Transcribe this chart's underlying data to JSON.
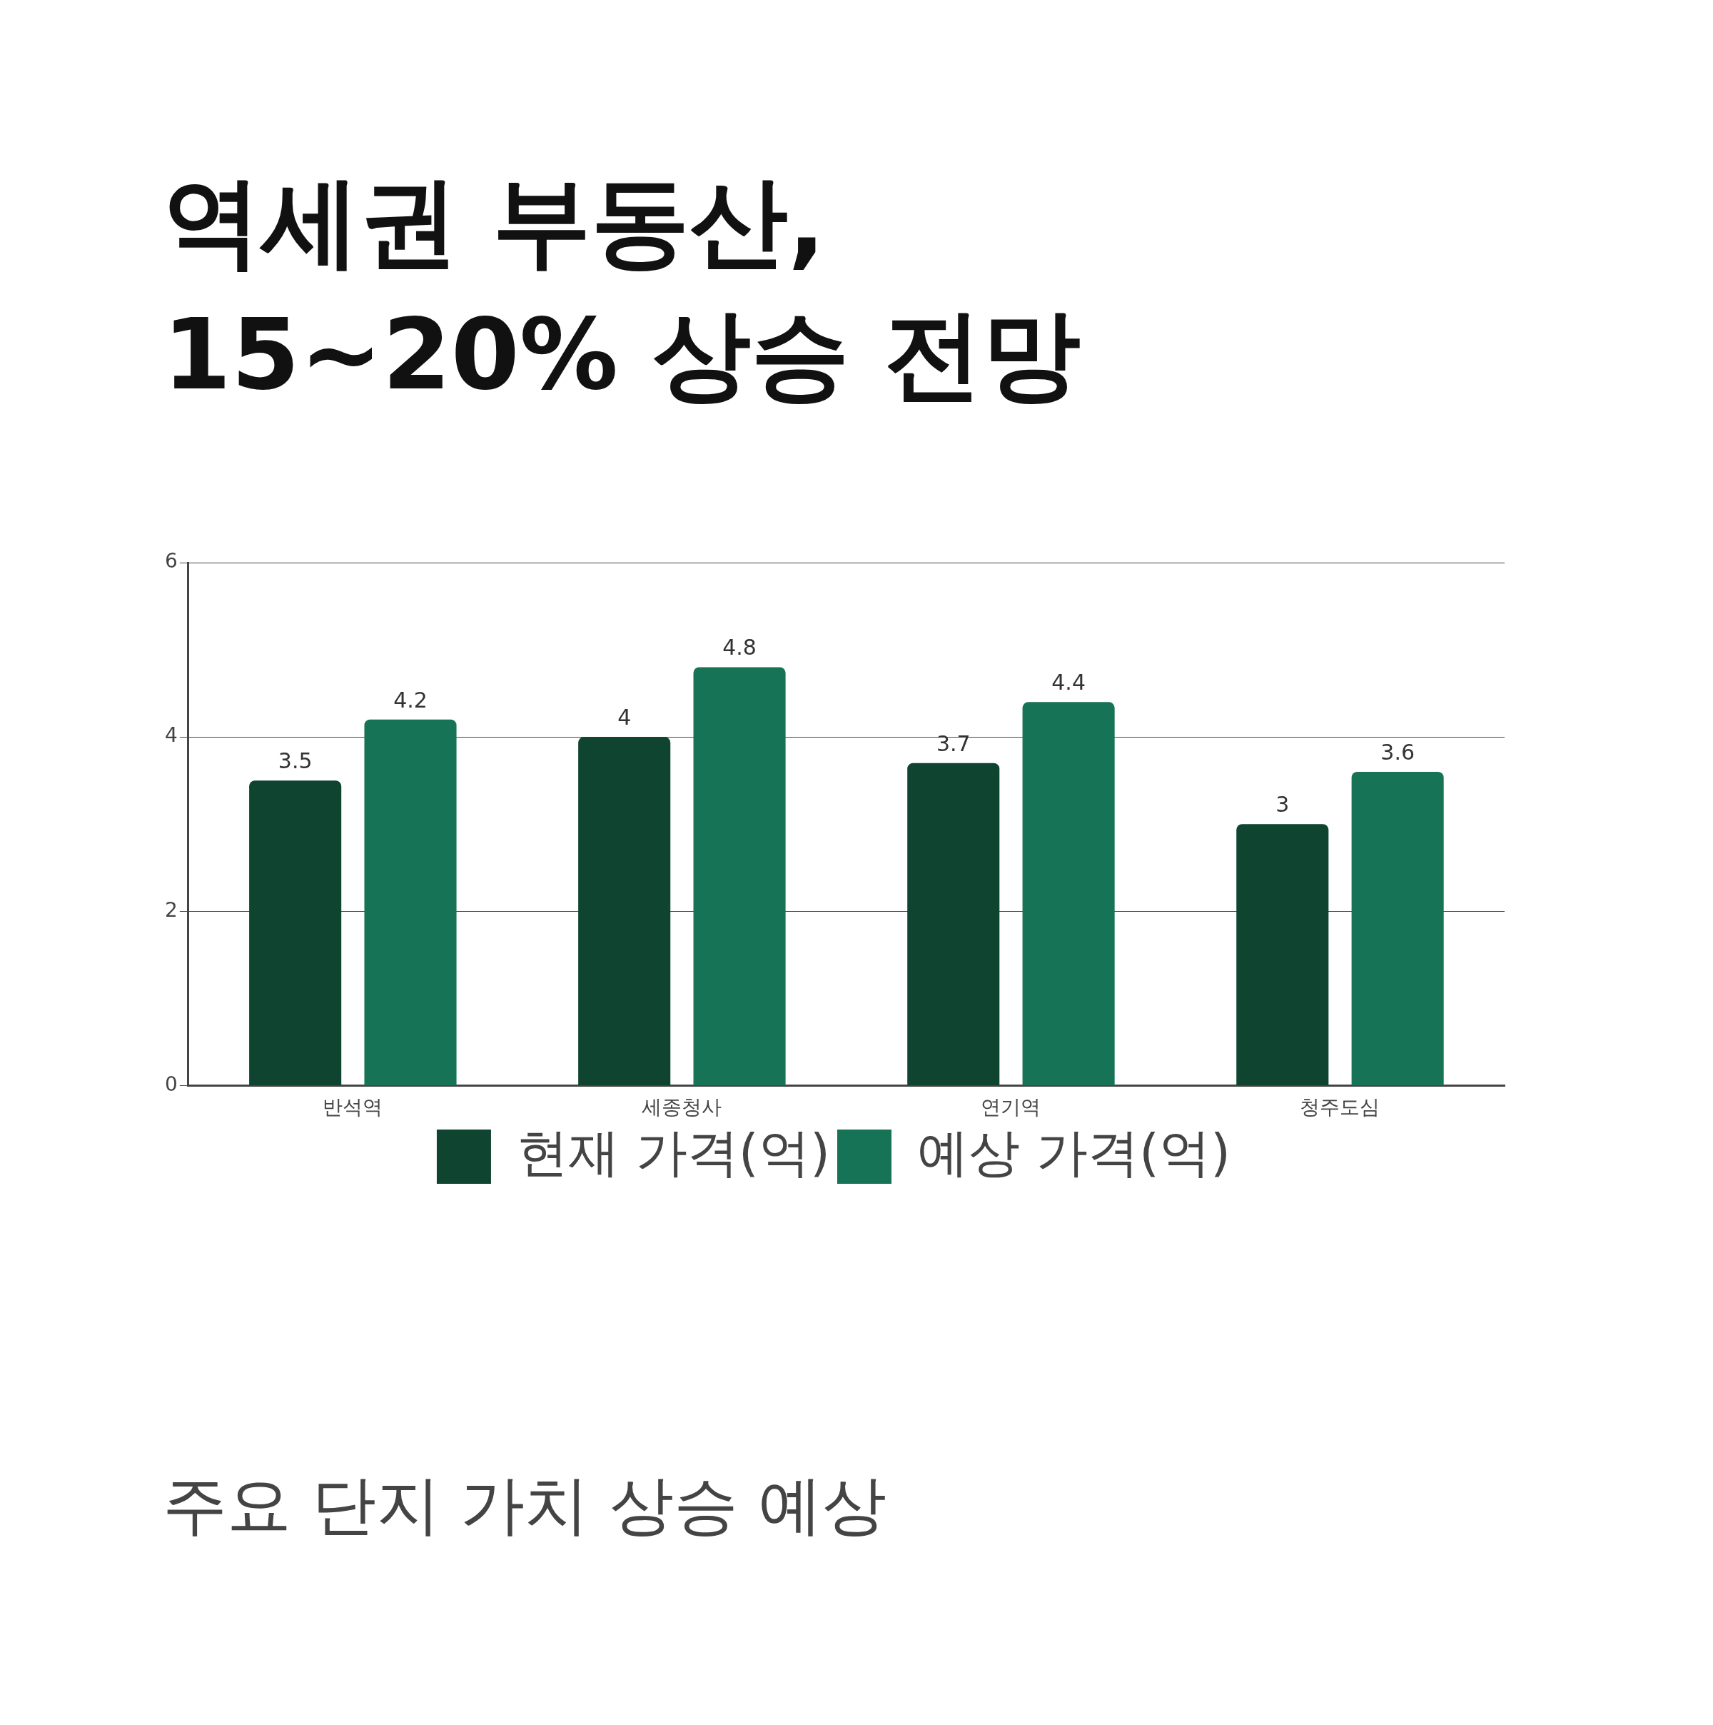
{
  "chart_data": {
    "type": "bar",
    "title": "역세권 부동산, 15~20% 상승 전망",
    "categories": [
      "반석역",
      "세종청사",
      "연기역",
      "청주도심"
    ],
    "series": [
      {
        "name": "현재 가격(억)",
        "color": "#0e4430",
        "values": [
          3.5,
          4,
          3.7,
          3
        ]
      },
      {
        "name": "예상 가격(억)",
        "color": "#177356",
        "values": [
          4.2,
          4.8,
          4.4,
          3.6
        ]
      }
    ],
    "ylim": [
      0,
      6
    ],
    "yticks": [
      0,
      2,
      4,
      6
    ],
    "grid": "y",
    "legend": "bottom",
    "data_labels": true,
    "annotations": [
      "주요 단지 가치 상승 예상"
    ]
  }
}
